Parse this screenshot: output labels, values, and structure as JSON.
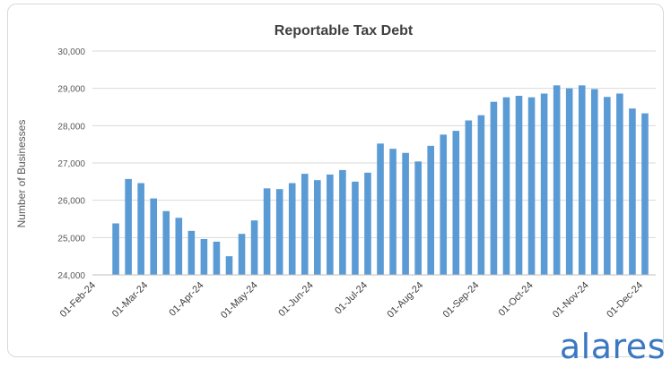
{
  "brand": {
    "name": "alares",
    "color": "#3a78c2"
  },
  "chart_data": {
    "type": "bar",
    "title": "Reportable Tax Debt",
    "ylabel": "Number of Businesses",
    "xlabel": "",
    "ylim": [
      24000,
      30000
    ],
    "yticks": [
      24000,
      25000,
      26000,
      27000,
      28000,
      29000,
      30000
    ],
    "ytick_labels": [
      "24,000",
      "25,000",
      "26,000",
      "27,000",
      "28,000",
      "29,000",
      "30,000"
    ],
    "x_axis_type": "date",
    "x_range": [
      "2024-02-01",
      "2024-12-10"
    ],
    "xticks": [
      "2024-02-01",
      "2024-03-01",
      "2024-04-01",
      "2024-05-01",
      "2024-06-01",
      "2024-07-01",
      "2024-08-01",
      "2024-09-01",
      "2024-10-01",
      "2024-11-01",
      "2024-12-01"
    ],
    "xtick_labels": [
      "01-Feb-24",
      "01-Mar-24",
      "01-Apr-24",
      "01-May-24",
      "01-Jun-24",
      "01-Jul-24",
      "01-Aug-24",
      "01-Sep-24",
      "01-Oct-24",
      "01-Nov-24",
      "01-Dec-24"
    ],
    "grid": true,
    "bar_color": "#5b9bd5",
    "x": [
      "2024-02-14",
      "2024-02-21",
      "2024-02-28",
      "2024-03-06",
      "2024-03-13",
      "2024-03-20",
      "2024-03-27",
      "2024-04-03",
      "2024-04-10",
      "2024-04-17",
      "2024-04-24",
      "2024-05-01",
      "2024-05-08",
      "2024-05-15",
      "2024-05-22",
      "2024-05-29",
      "2024-06-05",
      "2024-06-12",
      "2024-06-19",
      "2024-06-26",
      "2024-07-03",
      "2024-07-10",
      "2024-07-17",
      "2024-07-24",
      "2024-07-31",
      "2024-08-07",
      "2024-08-14",
      "2024-08-21",
      "2024-08-28",
      "2024-09-04",
      "2024-09-11",
      "2024-09-18",
      "2024-09-25",
      "2024-10-02",
      "2024-10-09",
      "2024-10-16",
      "2024-10-23",
      "2024-10-30",
      "2024-11-06",
      "2024-11-13",
      "2024-11-20",
      "2024-11-27",
      "2024-12-04"
    ],
    "values": [
      25380,
      26570,
      26460,
      26050,
      25710,
      25530,
      25180,
      24960,
      24890,
      24500,
      25100,
      25460,
      26320,
      26300,
      26460,
      26710,
      26540,
      26690,
      26810,
      26500,
      26740,
      27520,
      27380,
      27270,
      27040,
      27460,
      27760,
      27860,
      28140,
      28280,
      28640,
      28760,
      28800,
      28760,
      28860,
      29080,
      29000,
      29080,
      28980,
      28770,
      28860,
      28460,
      28330
    ]
  }
}
